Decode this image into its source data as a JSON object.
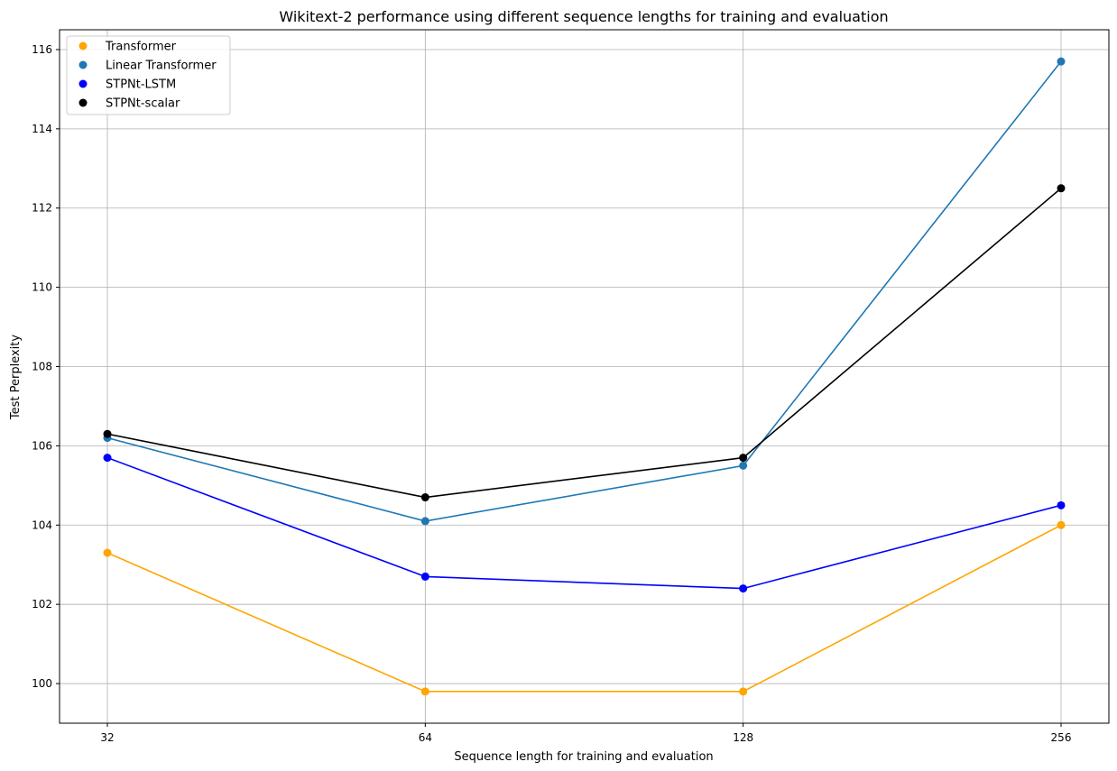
{
  "chart_data": {
    "type": "line",
    "title": "Wikitext-2 performance using different sequence lengths for training and evaluation",
    "xlabel": "Sequence length for training and evaluation",
    "ylabel": "Test Perplexity",
    "x": [
      32,
      64,
      128,
      256
    ],
    "x_scale": "log2",
    "x_tick_labels": [
      "32",
      "64",
      "128",
      "256"
    ],
    "y_ticks": [
      100,
      102,
      104,
      106,
      108,
      110,
      112,
      114,
      116
    ],
    "y_tick_labels": [
      "100",
      "102",
      "104",
      "106",
      "108",
      "110",
      "112",
      "114",
      "116"
    ],
    "ylim": [
      99,
      116.5
    ],
    "grid": true,
    "legend_position": "upper-left",
    "series": [
      {
        "name": "Transformer",
        "color": "#ffa500",
        "values": [
          103.3,
          99.8,
          99.8,
          104.0
        ]
      },
      {
        "name": "Linear Transformer",
        "color": "#1f77b4",
        "values": [
          106.2,
          104.1,
          105.5,
          115.7
        ]
      },
      {
        "name": "STPNt-LSTM",
        "color": "#0000ff",
        "values": [
          105.7,
          102.7,
          102.4,
          104.5
        ]
      },
      {
        "name": "STPNt-scalar",
        "color": "#000000",
        "values": [
          106.3,
          104.7,
          105.7,
          112.5
        ]
      }
    ]
  }
}
